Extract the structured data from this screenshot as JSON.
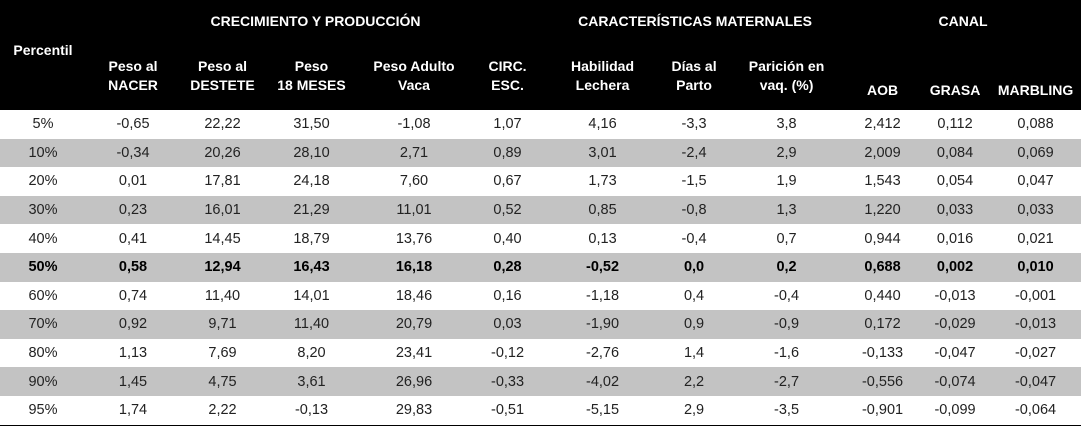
{
  "groups": {
    "growth": "CRECIMIENTO Y PRODUCCIÓN",
    "maternal": "CARACTERÍSTICAS MATERNALES",
    "carcass": "CANAL"
  },
  "columns": [
    {
      "l1": "Percentil",
      "l2": ""
    },
    {
      "l1": "Peso al",
      "l2": "NACER"
    },
    {
      "l1": "Peso al",
      "l2": "DESTETE"
    },
    {
      "l1": "Peso",
      "l2": "18 MESES"
    },
    {
      "l1": "Peso Adulto",
      "l2": "Vaca"
    },
    {
      "l1": "CIRC.",
      "l2": "ESC."
    },
    {
      "l1": "Habilidad",
      "l2": "Lechera"
    },
    {
      "l1": "Días al",
      "l2": "Parto"
    },
    {
      "l1": "Parición en",
      "l2": "vaq. (%)"
    },
    {
      "l1": "AOB",
      "l2": ""
    },
    {
      "l1": "GRASA",
      "l2": ""
    },
    {
      "l1": "MARBLING",
      "l2": ""
    }
  ],
  "rows": [
    [
      "5%",
      "-0,65",
      "22,22",
      "31,50",
      "-1,08",
      "1,07",
      "4,16",
      "-3,3",
      "3,8",
      "2,412",
      "0,112",
      "0,088"
    ],
    [
      "10%",
      "-0,34",
      "20,26",
      "28,10",
      "2,71",
      "0,89",
      "3,01",
      "-2,4",
      "2,9",
      "2,009",
      "0,084",
      "0,069"
    ],
    [
      "20%",
      "0,01",
      "17,81",
      "24,18",
      "7,60",
      "0,67",
      "1,73",
      "-1,5",
      "1,9",
      "1,543",
      "0,054",
      "0,047"
    ],
    [
      "30%",
      "0,23",
      "16,01",
      "21,29",
      "11,01",
      "0,52",
      "0,85",
      "-0,8",
      "1,3",
      "1,220",
      "0,033",
      "0,033"
    ],
    [
      "40%",
      "0,41",
      "14,45",
      "18,79",
      "13,76",
      "0,40",
      "0,13",
      "-0,4",
      "0,7",
      "0,944",
      "0,016",
      "0,021"
    ],
    [
      "50%",
      "0,58",
      "12,94",
      "16,43",
      "16,18",
      "0,28",
      "-0,52",
      "0,0",
      "0,2",
      "0,688",
      "0,002",
      "0,010"
    ],
    [
      "60%",
      "0,74",
      "11,40",
      "14,01",
      "18,46",
      "0,16",
      "-1,18",
      "0,4",
      "-0,4",
      "0,440",
      "-0,013",
      "-0,001"
    ],
    [
      "70%",
      "0,92",
      "9,71",
      "11,40",
      "20,79",
      "0,03",
      "-1,90",
      "0,9",
      "-0,9",
      "0,172",
      "-0,029",
      "-0,013"
    ],
    [
      "80%",
      "1,13",
      "7,69",
      "8,20",
      "23,41",
      "-0,12",
      "-2,76",
      "1,4",
      "-1,6",
      "-0,133",
      "-0,047",
      "-0,027"
    ],
    [
      "90%",
      "1,45",
      "4,75",
      "3,61",
      "26,96",
      "-0,33",
      "-4,02",
      "2,2",
      "-2,7",
      "-0,556",
      "-0,074",
      "-0,047"
    ],
    [
      "95%",
      "1,74",
      "2,22",
      "-0,13",
      "29,83",
      "-0,51",
      "-5,15",
      "2,9",
      "-3,5",
      "-0,901",
      "-0,099",
      "-0,064"
    ]
  ],
  "highlight_row": "50%",
  "colors": {
    "header_bg": "#000000",
    "alt_row_bg": "#c3c3c3"
  }
}
